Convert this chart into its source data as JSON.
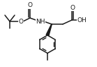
{
  "bg_color": "#ffffff",
  "line_color": "#1a1a1a",
  "line_width": 1.1,
  "font_size": 6.5,
  "figsize": [
    1.39,
    0.97
  ],
  "dpi": 100,
  "xlim": [
    0,
    139
  ],
  "ylim": [
    0,
    97
  ]
}
